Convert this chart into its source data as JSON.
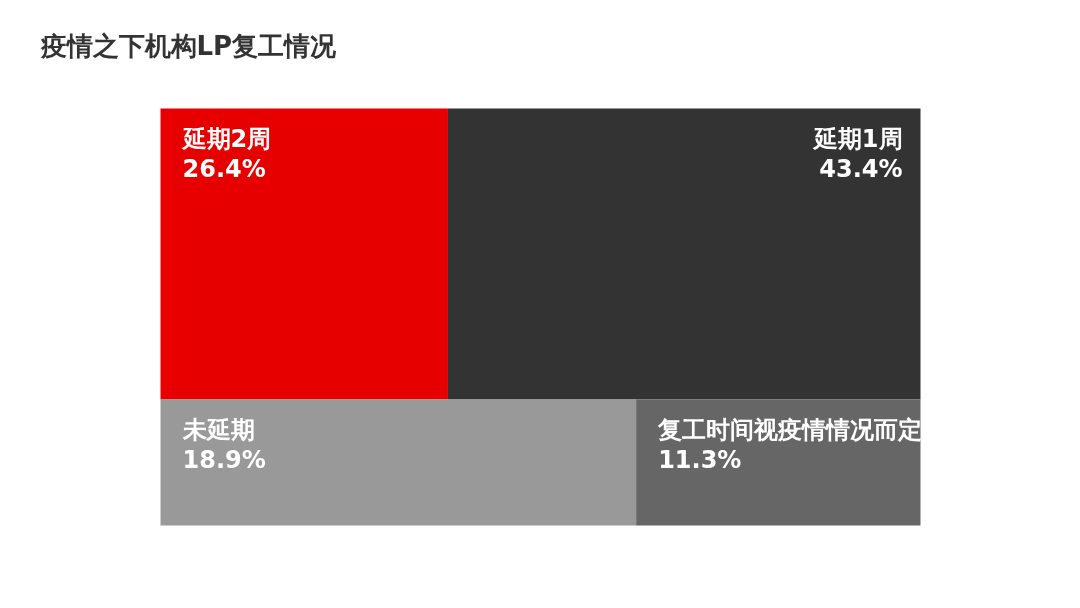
{
  "chart_data": {
    "type": "other",
    "title": "疫情之下机构LP复工情况",
    "categories": [
      "延期2周",
      "延期1周",
      "未延期",
      "复工时间视疫情情况而定"
    ],
    "values": [
      26.4,
      43.4,
      18.9,
      11.3
    ],
    "value_labels": [
      "26.4%",
      "43.4%",
      "18.9%",
      "11.3%"
    ],
    "colors": [
      "#e60000",
      "#333333",
      "#999999",
      "#666666"
    ]
  }
}
